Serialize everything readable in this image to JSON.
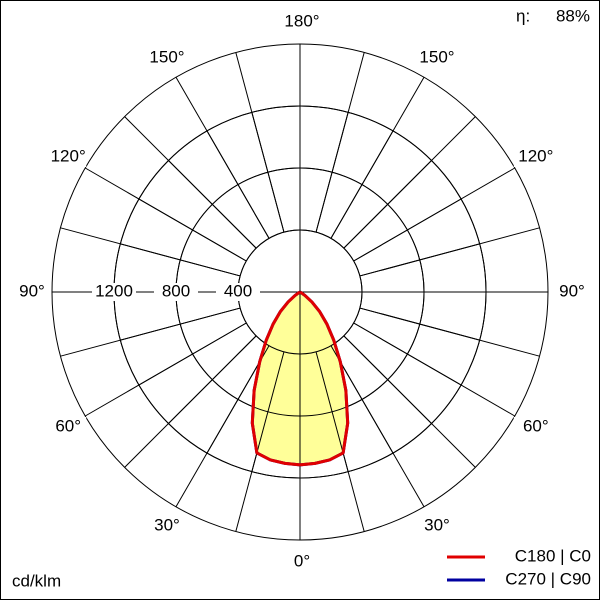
{
  "chart_data": {
    "type": "polar",
    "units": "cd/klm",
    "efficiency": {
      "label": "η:",
      "value": 88,
      "value_label": "88%"
    },
    "rlim": [
      0,
      1600
    ],
    "rticks": [
      400,
      800,
      1200
    ],
    "angle_ticks": [
      {
        "value": 0,
        "label": "0°"
      },
      {
        "value": 30,
        "label": "30°"
      },
      {
        "value": 60,
        "label": "60°"
      },
      {
        "value": 90,
        "label": "90°"
      },
      {
        "value": 120,
        "label": "120°"
      },
      {
        "value": 150,
        "label": "150°"
      },
      {
        "value": 180,
        "label": "180°"
      }
    ],
    "fill": "#ffff99",
    "x": [
      0,
      5,
      10,
      15,
      20,
      25,
      30,
      35,
      40,
      45,
      50,
      55,
      60,
      65,
      70,
      75,
      80,
      85,
      90
    ],
    "series": [
      {
        "name": "C270 | C90",
        "color": "#0000a0",
        "values": [
          1115,
          1110,
          1100,
          1075,
          900,
          700,
          520,
          380,
          270,
          180,
          100,
          40,
          10,
          0,
          0,
          0,
          0,
          0,
          0
        ]
      },
      {
        "name": "C180 | C0",
        "color": "#e00000",
        "values": [
          1115,
          1110,
          1100,
          1075,
          900,
          700,
          520,
          380,
          270,
          180,
          100,
          40,
          10,
          0,
          0,
          0,
          0,
          0,
          0
        ]
      }
    ]
  }
}
